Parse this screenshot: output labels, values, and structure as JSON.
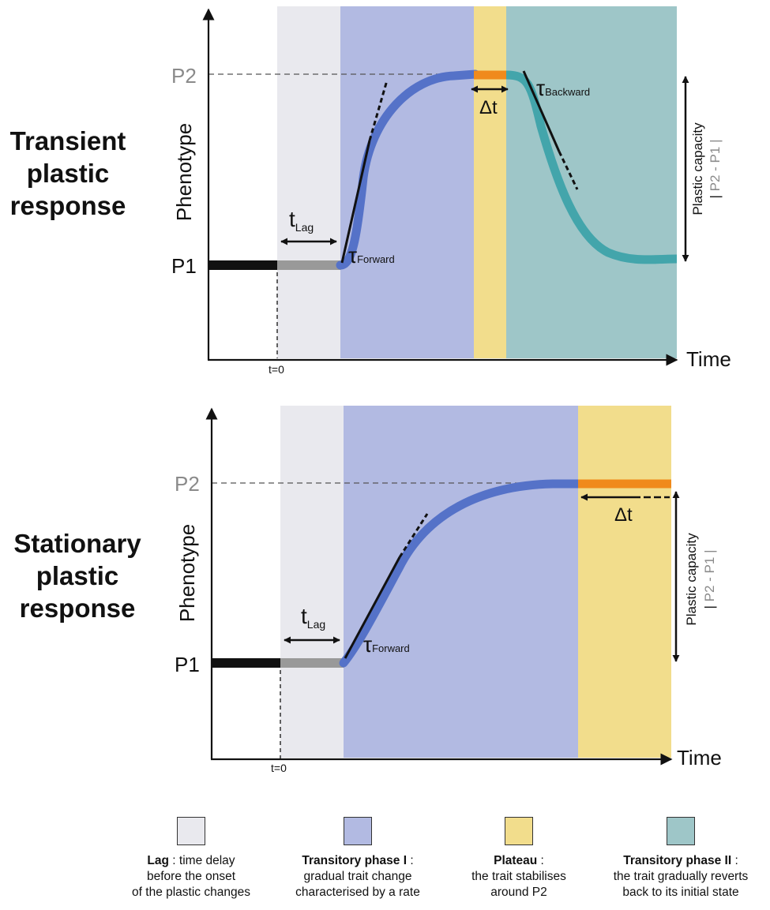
{
  "rows": [
    {
      "title_lines": [
        "Transient",
        "plastic",
        "response"
      ],
      "y_axis_label": "Phenotype",
      "x_axis_label": "Time",
      "p1_label": "P1",
      "p2_label": "P2",
      "t0_label": "t=0",
      "tlag_main": "t",
      "tlag_sub": "Lag",
      "tau_forward_main": "τ",
      "tau_forward_sub": "Forward",
      "tau_backward_main": "τ",
      "tau_backward_sub": "Backward",
      "delta_t_label": "Δt",
      "capacity_label": "Plastic capacity",
      "capacity_formula_parts": [
        "| ",
        "P2",
        " - P1 |"
      ]
    },
    {
      "title_lines": [
        "Stationary",
        "plastic",
        "response"
      ],
      "y_axis_label": "Phenotype",
      "x_axis_label": "Time",
      "p1_label": "P1",
      "p2_label": "P2",
      "t0_label": "t=0",
      "tlag_main": "t",
      "tlag_sub": "Lag",
      "tau_forward_main": "τ",
      "tau_forward_sub": "Forward",
      "delta_t_label": "Δt",
      "capacity_label": "Plastic capacity",
      "capacity_formula_parts": [
        "| ",
        "P2",
        " - P1 |"
      ]
    }
  ],
  "legend": [
    {
      "name": "Lag",
      "separator": " : ",
      "desc_first": "time delay",
      "desc_rest": [
        "before the onset",
        "of the plastic changes"
      ],
      "color": "#e9e9ee"
    },
    {
      "name": "Transitory phase I",
      "separator": " :",
      "desc_first": "",
      "desc_rest": [
        "gradual trait change",
        "characterised by a rate"
      ],
      "color": "#b2bae2"
    },
    {
      "name": "Plateau",
      "separator": " :",
      "desc_first": "",
      "desc_rest": [
        "the trait stabilises",
        "around P2"
      ],
      "color": "#f2dd8c"
    },
    {
      "name": "Transitory phase II",
      "separator": " :",
      "desc_first": "",
      "desc_rest": [
        "the trait gradually reverts",
        "back to its initial state"
      ],
      "color": "#9ec6c8"
    }
  ],
  "colors": {
    "lag": "#e9e9ee",
    "phase1": "#b2bae2",
    "plateau": "#f2dd8c",
    "phase2": "#9ec6c8",
    "curve_forward": "#5572c8",
    "curve_backward": "#43a5ab",
    "plateau_bar": "#f08a1c",
    "baseline": "#111111",
    "lag_line": "#999999",
    "p2_grey": "#8a8a8a"
  }
}
